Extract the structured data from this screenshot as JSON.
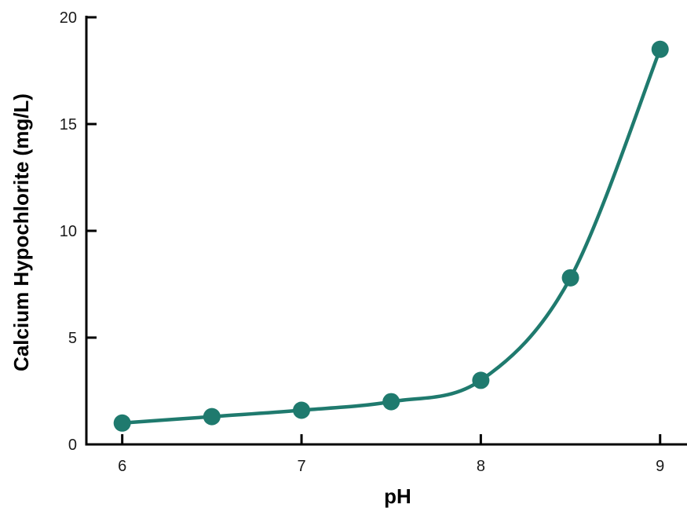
{
  "chart_data": {
    "type": "line",
    "title": "",
    "xlabel": "pH",
    "ylabel": "Calcium Hypochlorite (mg/L)",
    "x": [
      6,
      6.5,
      7,
      7.5,
      8,
      8.5,
      9
    ],
    "series": [
      {
        "values": [
          1.0,
          1.3,
          1.6,
          2.0,
          3.0,
          7.8,
          18.5
        ]
      }
    ],
    "xlim": [
      5.8,
      9.15
    ],
    "ylim": [
      0,
      20
    ],
    "xticks": [
      "6",
      "7",
      "8",
      "9"
    ],
    "yticks": [
      "0",
      "5",
      "10",
      "15",
      "20"
    ],
    "grid": false,
    "smooth": true,
    "markers": true
  },
  "colors": {
    "series": "#1f7a6e",
    "axis": "#000000"
  }
}
